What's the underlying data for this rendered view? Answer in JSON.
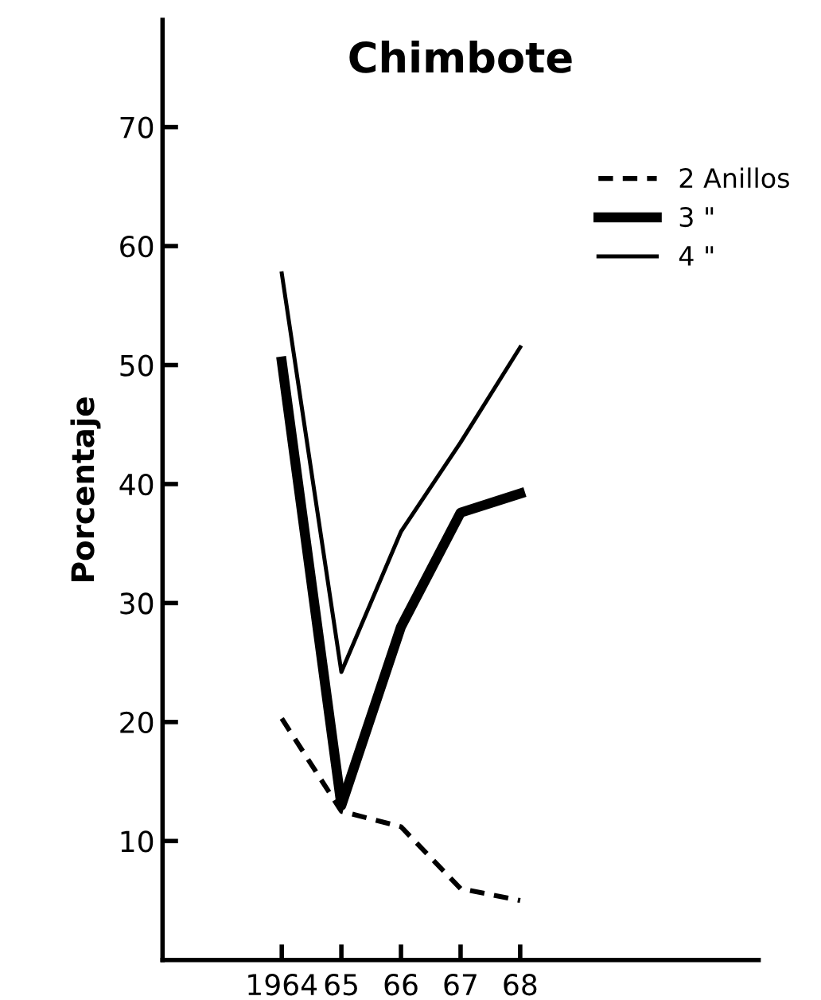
{
  "chart_data": {
    "type": "line",
    "title": "Chimbote",
    "ylabel": "Porcentaje",
    "x": [
      1964,
      1965,
      1966,
      1967,
      1968
    ],
    "series": [
      {
        "name": "2 Anillos",
        "color": "#000000",
        "line_style": "dashed",
        "values": [
          20.3,
          12.5,
          11.2,
          6,
          5
        ]
      },
      {
        "name": "3 \"",
        "color": "#000000",
        "line_style": "solid",
        "values": [
          50.3,
          13,
          28,
          37.6,
          39.2
        ]
      },
      {
        "name": "4 \"",
        "color": "#000000",
        "line_style": "solid",
        "values": [
          57.7,
          24.2,
          36,
          43.5,
          51.5
        ]
      }
    ],
    "xlim": [
      1962,
      1972
    ],
    "ylim": [
      0,
      79
    ],
    "xticks": [
      {
        "value": 1964,
        "label": "1964"
      },
      {
        "value": 1965,
        "label": "65"
      },
      {
        "value": 1966,
        "label": "66"
      },
      {
        "value": 1967,
        "label": "67"
      },
      {
        "value": 1968,
        "label": "68"
      }
    ],
    "yticks": [
      10,
      20,
      30,
      40,
      50,
      60,
      70
    ],
    "grid": false,
    "legend": "top right",
    "marker": "none"
  }
}
